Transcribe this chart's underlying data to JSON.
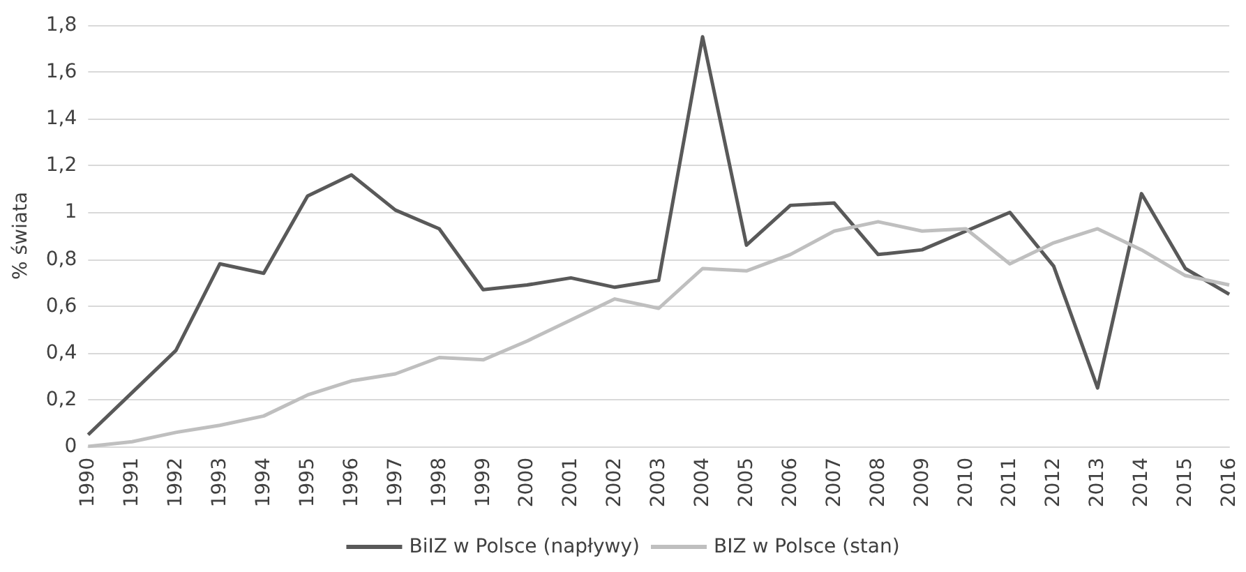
{
  "chart_data": {
    "type": "line",
    "ylabel": "% świata",
    "categories": [
      "1990",
      "1991",
      "1992",
      "1993",
      "1994",
      "1995",
      "1996",
      "1997",
      "1998",
      "1999",
      "2000",
      "2001",
      "2002",
      "2003",
      "2004",
      "2005",
      "2006",
      "2007",
      "2008",
      "2009",
      "2010",
      "2011",
      "2012",
      "2013",
      "2014",
      "2015",
      "2016"
    ],
    "series": [
      {
        "name": "BiIZ w Polsce (napływy)",
        "color": "#595959",
        "values": [
          0.05,
          0.23,
          0.41,
          0.78,
          0.74,
          1.07,
          1.16,
          1.01,
          0.93,
          0.67,
          0.69,
          0.72,
          0.68,
          0.71,
          1.75,
          0.86,
          1.03,
          1.04,
          0.82,
          0.84,
          0.92,
          1.0,
          0.77,
          0.25,
          1.08,
          0.76,
          0.65
        ]
      },
      {
        "name": "BIZ w Polsce (stan)",
        "color": "#bfbfbf",
        "values": [
          0.0,
          0.02,
          0.06,
          0.09,
          0.13,
          0.22,
          0.28,
          0.31,
          0.38,
          0.37,
          0.45,
          0.54,
          0.63,
          0.59,
          0.76,
          0.75,
          0.82,
          0.92,
          0.96,
          0.92,
          0.93,
          0.78,
          0.87,
          0.93,
          0.84,
          0.73,
          0.69
        ]
      }
    ],
    "ylim": [
      0,
      1.8
    ],
    "yticks": [
      0,
      {
        "value": 0.2,
        "label": "0,2"
      },
      {
        "value": 0.4,
        "label": "0,4"
      },
      {
        "value": 0.6,
        "label": "0,6"
      },
      {
        "value": 0.8,
        "label": "0,8"
      },
      1,
      {
        "value": 1.2,
        "label": "1,2"
      },
      {
        "value": 1.4,
        "label": "1,4"
      },
      {
        "value": 1.6,
        "label": "1,6"
      },
      {
        "value": 1.8,
        "label": "1,8"
      }
    ],
    "grid": "y",
    "legend": "bottom",
    "marker": "none",
    "line_style": "solid"
  }
}
